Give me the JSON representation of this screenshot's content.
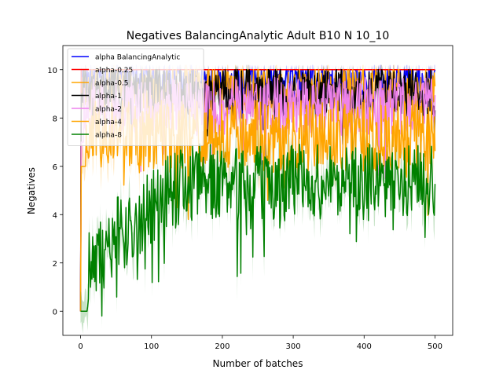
{
  "chart_data": {
    "type": "line",
    "title": "Negatives BalancingAnalytic Adult B10 N 10_10",
    "xlabel": "Number of batches",
    "ylabel": "Negatives",
    "xlim": [
      -25,
      525
    ],
    "ylim": [
      -1,
      11
    ],
    "x_ticks": [
      0,
      100,
      200,
      300,
      400,
      500
    ],
    "y_ticks": [
      0,
      2,
      4,
      6,
      8,
      10
    ],
    "x_tick_labels": [
      "0",
      "100",
      "200",
      "300",
      "400",
      "500"
    ],
    "y_tick_labels": [
      "0",
      "2",
      "4",
      "6",
      "8",
      "10"
    ],
    "grid": false,
    "legend_position": "top-left",
    "n_points": 501,
    "series": [
      {
        "name": "alpha BalancingAnalytic",
        "color": "#0000ff",
        "start_value": 10,
        "level": 9.7,
        "noise": 0.7,
        "floor": 7.2,
        "onset": 2
      },
      {
        "name": "alpha-0.25",
        "color": "#ff0000",
        "start_value": 10,
        "level": 10.0,
        "noise": 0.0,
        "floor": 10.0,
        "onset": 2
      },
      {
        "name": "alpha-0.5",
        "color": "#ffa500",
        "start_value": 9,
        "level": 9.3,
        "noise": 1.0,
        "floor": 6.2,
        "onset": 3
      },
      {
        "name": "alpha-1",
        "color": "#000000",
        "start_value": 9,
        "level": 9.2,
        "noise": 1.0,
        "floor": 6.0,
        "onset": 3
      },
      {
        "name": "alpha-2",
        "color": "#ee82ee",
        "start_value": 7,
        "level": 8.6,
        "noise": 1.2,
        "floor": 5.2,
        "onset": 5
      },
      {
        "name": "alpha-4",
        "color": "#ffa500",
        "start_value": 6,
        "level": 7.4,
        "noise": 1.5,
        "floor": 3.8,
        "onset": 8
      },
      {
        "name": "alpha-8",
        "color": "#008000",
        "start_value": 0,
        "level": 5.5,
        "noise": 1.6,
        "floor": 0.0,
        "onset": 10,
        "ramp": [
          0,
          150
        ]
      }
    ]
  }
}
